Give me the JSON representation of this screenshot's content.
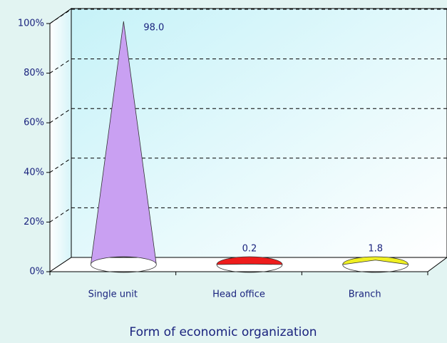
{
  "chart_data": {
    "type": "cone",
    "categories": [
      "Single unit",
      "Head office",
      "Branch"
    ],
    "values": [
      98.0,
      0.2,
      1.8
    ],
    "value_labels": [
      "98.0",
      "0.2",
      "1.8"
    ],
    "colors": [
      "#c9a0f2",
      "#ee1c1c",
      "#f0f022"
    ],
    "x_label": "Form of economic organization",
    "ylim": [
      0,
      100
    ],
    "yticks": [
      {
        "value": 0,
        "label": "0%"
      },
      {
        "value": 20,
        "label": "20%"
      },
      {
        "value": 40,
        "label": "40%"
      },
      {
        "value": 60,
        "label": "60%"
      },
      {
        "value": 80,
        "label": "80%"
      },
      {
        "value": 100,
        "label": "100%"
      }
    ],
    "grid": true
  }
}
